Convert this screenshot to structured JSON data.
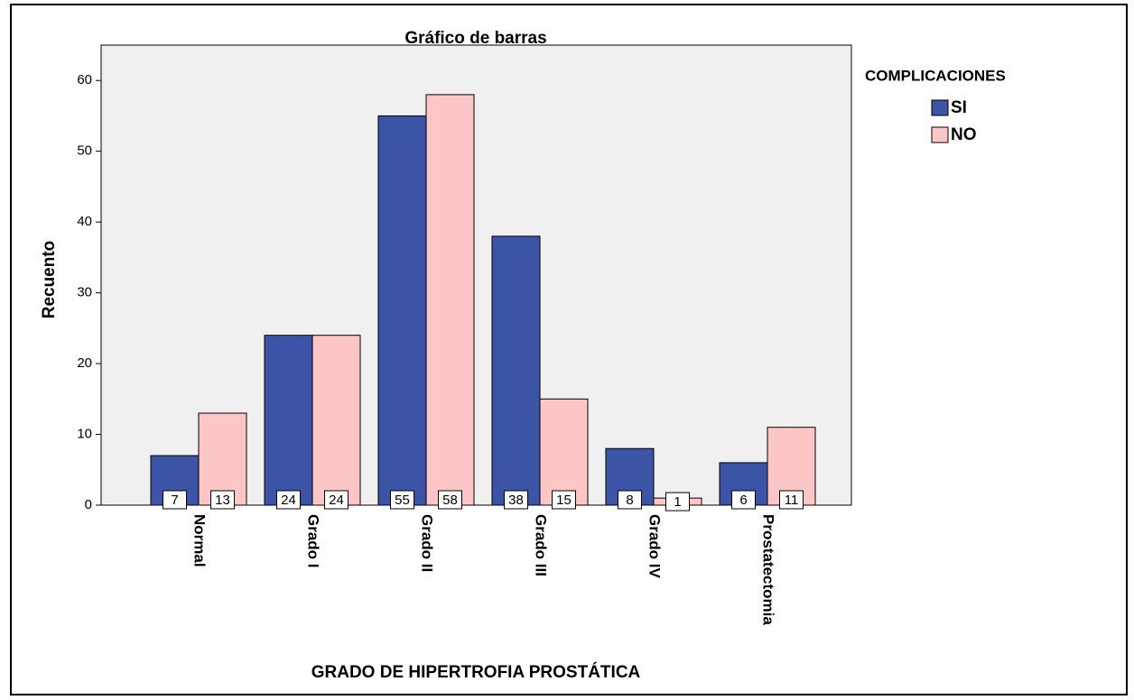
{
  "chart_data": {
    "type": "bar",
    "title": "Gráfico de barras",
    "categories": [
      "Normal",
      "Grado I",
      "Grado II",
      "Grado III",
      "Grado IV",
      "Prostatectomia"
    ],
    "series": [
      {
        "name": "SI",
        "color": "#3b54a5",
        "values": [
          7,
          24,
          55,
          38,
          8,
          6
        ]
      },
      {
        "name": "NO",
        "color": "#fcc6c6",
        "values": [
          13,
          24,
          58,
          15,
          1,
          11
        ]
      }
    ],
    "legend_title": "COMPLICACIONES",
    "x_label": "GRADO DE HIPERTROFIA PROSTÁTICA",
    "y_label": "Recuento",
    "ylim": [
      0,
      65
    ],
    "yticks": [
      0,
      10,
      20,
      30,
      40,
      50,
      60
    ],
    "legend_position": "right"
  }
}
